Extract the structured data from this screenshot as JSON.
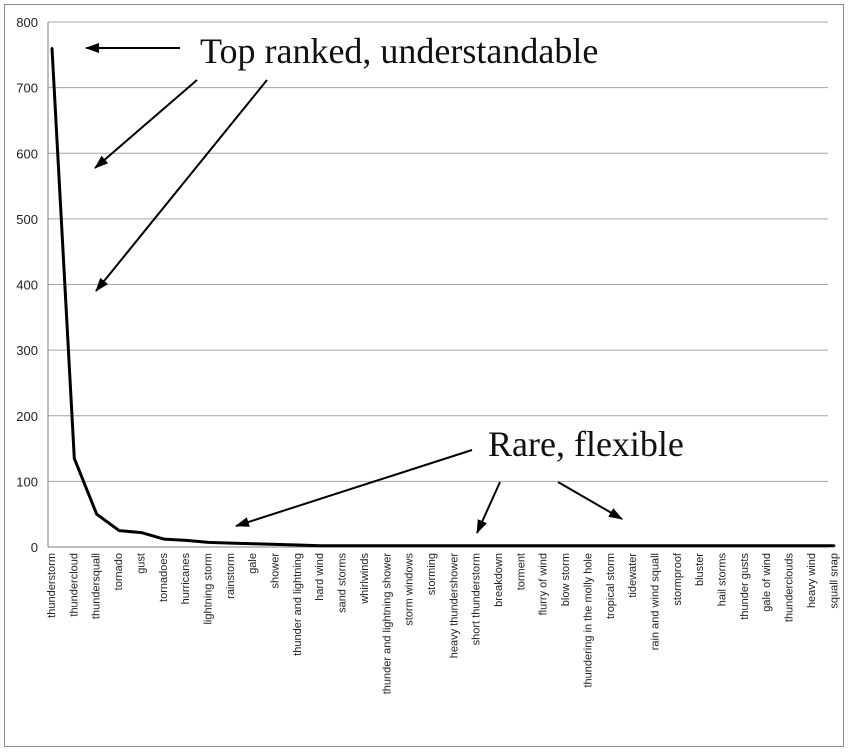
{
  "chart_data": {
    "type": "line",
    "title": "",
    "xlabel": "",
    "ylabel": "",
    "ylim": [
      0,
      800
    ],
    "y_ticks": [
      0,
      100,
      200,
      300,
      400,
      500,
      600,
      700,
      800
    ],
    "grid": true,
    "legend": "none",
    "categories": [
      "thunderstorm",
      "thundercloud",
      "thundersquall",
      "tornado",
      "gust",
      "tornadoes",
      "hurricanes",
      "lightning storm",
      "rainstorm",
      "gale",
      "shower",
      "thunder and lightning",
      "hard wind",
      "sand storms",
      "whirlwinds",
      "thunder and lightning shower",
      "storm windows",
      "storming",
      "heavy thundershower",
      "short thunderstorm",
      "breakdown",
      "torment",
      "flurry of wind",
      "blow storm",
      "thundering in the molly hole",
      "tropical storm",
      "tidewater",
      "rain and wind squall",
      "stormproof",
      "bluster",
      "hail storms",
      "thunder gusts",
      "gale of wind",
      "thunderclouds",
      "heavy wind",
      "squall snap"
    ],
    "series": [
      {
        "values": [
          760,
          135,
          50,
          25,
          22,
          12,
          10,
          7,
          6,
          5,
          4,
          3,
          2,
          2,
          2,
          2,
          2,
          2,
          2,
          2,
          2,
          2,
          2,
          2,
          2,
          2,
          2,
          2,
          2,
          2,
          2,
          2,
          2,
          2,
          2,
          2
        ]
      }
    ],
    "annotations": [
      {
        "text": "Top ranked, understandable"
      },
      {
        "text": "Rare, flexible"
      }
    ]
  }
}
